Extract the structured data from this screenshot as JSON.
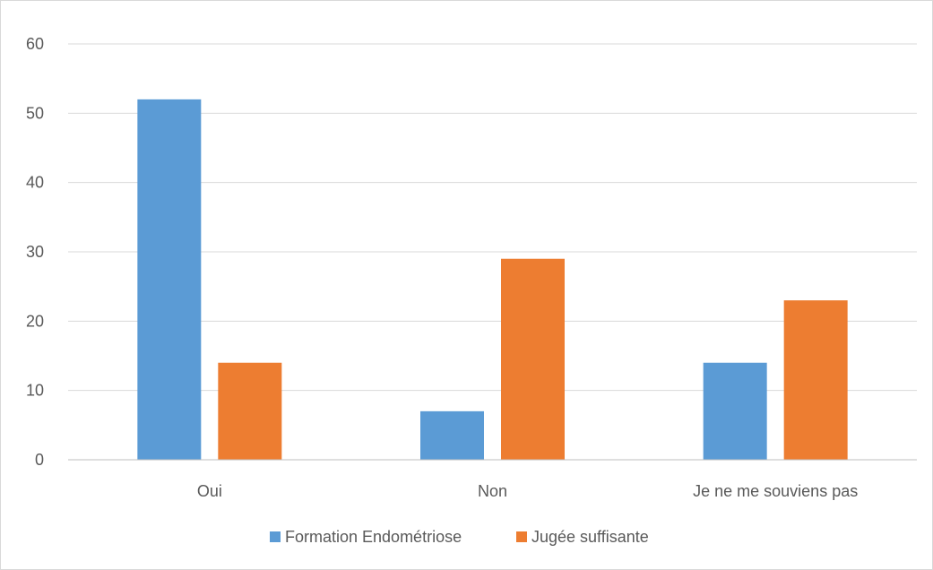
{
  "chart_data": {
    "type": "bar",
    "categories": [
      "Oui",
      "Non",
      "Je ne me souviens pas"
    ],
    "series": [
      {
        "name": "Formation Endométriose",
        "values": [
          52,
          7,
          14
        ],
        "color": "#5b9bd5"
      },
      {
        "name": "Jugée suffisante",
        "values": [
          14,
          29,
          23
        ],
        "color": "#ed7d31"
      }
    ],
    "ylim": [
      0,
      60
    ],
    "yticks": [
      0,
      10,
      20,
      30,
      40,
      50,
      60
    ],
    "grid": true,
    "legend": "bottom",
    "gridColor": "#d9d9d9",
    "axisColor": "#bfbfbf",
    "textColor": "#595959"
  }
}
